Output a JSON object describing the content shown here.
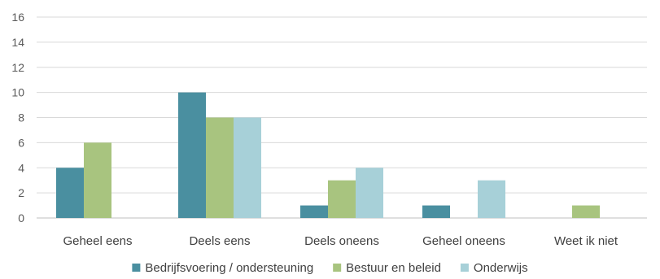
{
  "chart_data": {
    "type": "bar",
    "categories": [
      "Geheel eens",
      "Deels eens",
      "Deels oneens",
      "Geheel oneens",
      "Weet ik niet"
    ],
    "series": [
      {
        "name": "Bedrijfsvoering / ondersteuning",
        "values": [
          4,
          10,
          1,
          1,
          0
        ],
        "color": "#4a8fa0"
      },
      {
        "name": "Bestuur en beleid",
        "values": [
          6,
          8,
          3,
          0,
          1
        ],
        "color": "#a8c47f"
      },
      {
        "name": "Onderwijs",
        "values": [
          0,
          8,
          4,
          3,
          0
        ],
        "color": "#a7d0d8"
      }
    ],
    "ylim": [
      0,
      16
    ],
    "yticks": [
      "0",
      "2",
      "4",
      "6",
      "8",
      "10",
      "12",
      "14",
      "16"
    ],
    "grid": true,
    "legend_position": "bottom"
  }
}
